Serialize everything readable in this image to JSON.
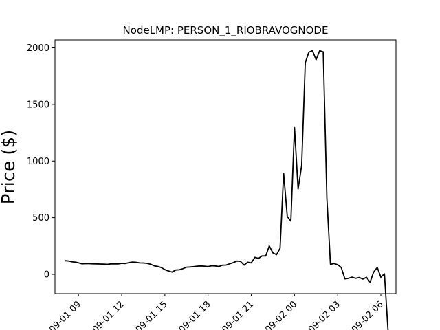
{
  "chart_data": {
    "type": "line",
    "title": "NodeLMP: PERSON_1_RIOBRAVOGNODE",
    "xlabel": "",
    "ylabel": "Price ($)",
    "xlim": [
      "2021-09-01 07:22",
      "2021-09-02 07:03"
    ],
    "ylim": [
      -170,
      2070
    ],
    "x_ticks": [
      {
        "value": "2021-09-01 09:00",
        "label": "09-01 09"
      },
      {
        "value": "2021-09-01 12:00",
        "label": "09-01 12"
      },
      {
        "value": "2021-09-01 15:00",
        "label": "09-01 15"
      },
      {
        "value": "2021-09-01 18:00",
        "label": "09-01 18"
      },
      {
        "value": "2021-09-01 21:00",
        "label": "09-01 21"
      },
      {
        "value": "2021-09-02 00:00",
        "label": "09-02 00"
      },
      {
        "value": "2021-09-02 03:00",
        "label": "09-02 03"
      },
      {
        "value": "2021-09-02 06:00",
        "label": "09-02 06"
      }
    ],
    "y_ticks": [
      0,
      500,
      1000,
      1500,
      2000
    ],
    "grid": false,
    "color": "#000000",
    "series": [
      {
        "x": [
          "2021-09-01 08:05",
          "2021-09-01 08:20",
          "2021-09-01 08:35",
          "2021-09-01 08:50",
          "2021-09-01 09:00",
          "2021-09-01 09:15",
          "2021-09-01 09:30",
          "2021-09-01 09:45",
          "2021-09-01 10:00",
          "2021-09-01 10:15",
          "2021-09-01 10:30",
          "2021-09-01 10:45",
          "2021-09-01 11:00",
          "2021-09-01 11:15",
          "2021-09-01 11:30",
          "2021-09-01 11:45",
          "2021-09-01 12:00",
          "2021-09-01 12:15",
          "2021-09-01 12:30",
          "2021-09-01 12:45",
          "2021-09-01 13:00",
          "2021-09-01 13:15",
          "2021-09-01 13:30",
          "2021-09-01 13:45",
          "2021-09-01 14:00",
          "2021-09-01 14:15",
          "2021-09-01 14:30",
          "2021-09-01 14:45",
          "2021-09-01 15:00",
          "2021-09-01 15:15",
          "2021-09-01 15:30",
          "2021-09-01 15:45",
          "2021-09-01 16:00",
          "2021-09-01 16:15",
          "2021-09-01 16:30",
          "2021-09-01 16:45",
          "2021-09-01 17:00",
          "2021-09-01 17:15",
          "2021-09-01 17:30",
          "2021-09-01 17:45",
          "2021-09-01 18:00",
          "2021-09-01 18:15",
          "2021-09-01 18:30",
          "2021-09-01 18:45",
          "2021-09-01 19:00",
          "2021-09-01 19:15",
          "2021-09-01 19:30",
          "2021-09-01 19:45",
          "2021-09-01 20:00",
          "2021-09-01 20:15",
          "2021-09-01 20:30",
          "2021-09-01 20:45",
          "2021-09-01 21:00",
          "2021-09-01 21:15",
          "2021-09-01 21:30",
          "2021-09-01 21:45",
          "2021-09-01 22:00",
          "2021-09-01 22:15",
          "2021-09-01 22:30",
          "2021-09-01 22:45",
          "2021-09-01 23:00",
          "2021-09-01 23:15",
          "2021-09-01 23:30",
          "2021-09-01 23:45",
          "2021-09-02 00:00",
          "2021-09-02 00:15",
          "2021-09-02 00:30",
          "2021-09-02 00:45",
          "2021-09-02 01:00",
          "2021-09-02 01:15",
          "2021-09-02 01:30",
          "2021-09-02 01:45",
          "2021-09-02 02:00",
          "2021-09-02 02:15",
          "2021-09-02 02:30",
          "2021-09-02 02:45",
          "2021-09-02 03:00",
          "2021-09-02 03:15",
          "2021-09-02 03:30",
          "2021-09-02 03:45",
          "2021-09-02 04:00",
          "2021-09-02 04:15",
          "2021-09-02 04:30",
          "2021-09-02 04:45",
          "2021-09-02 05:00",
          "2021-09-02 05:15",
          "2021-09-02 05:30",
          "2021-09-02 05:45",
          "2021-09-02 06:00",
          "2021-09-02 06:15",
          "2021-09-02 06:30"
        ],
        "values": [
          120,
          117,
          110,
          107,
          102,
          93,
          95,
          94,
          93,
          92,
          91,
          90,
          88,
          92,
          93,
          92,
          97,
          95,
          103,
          108,
          106,
          101,
          100,
          97,
          90,
          75,
          70,
          60,
          42,
          30,
          20,
          38,
          40,
          50,
          63,
          65,
          68,
          72,
          74,
          72,
          68,
          76,
          74,
          69,
          81,
          82,
          93,
          103,
          117,
          115,
          82,
          107,
          101,
          150,
          140,
          162,
          162,
          250,
          190,
          173,
          230,
          890,
          510,
          470,
          1295,
          753,
          960,
          1870,
          1962,
          1975,
          1895,
          1975,
          1965,
          670,
          88,
          95,
          85,
          60,
          -40,
          -35,
          -25,
          -35,
          -28,
          -42,
          -26,
          -70,
          20,
          60,
          -25,
          5,
          -500
        ]
      }
    ]
  }
}
